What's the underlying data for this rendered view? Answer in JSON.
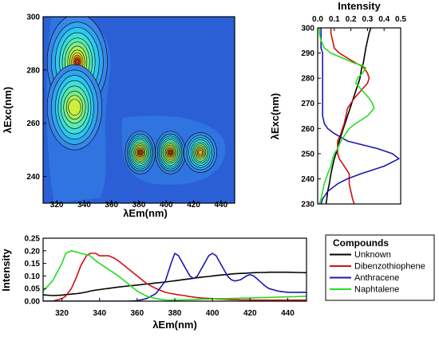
{
  "chart_data": [
    {
      "type": "heatmap",
      "xlabel": "λEm(nm)",
      "ylabel": "λExc(nm)",
      "xlim": [
        310,
        450
      ],
      "ylim": [
        230,
        300
      ],
      "xticks": [
        "320",
        "340",
        "360",
        "380",
        "400",
        "420",
        "440"
      ],
      "yticks": [
        "240",
        "260",
        "280",
        "300"
      ],
      "peaks": [
        {
          "em": 335,
          "exc": 283,
          "level": 1.0
        },
        {
          "em": 332,
          "exc": 265,
          "level": 0.7
        },
        {
          "em": 381,
          "exc": 249,
          "level": 1.0
        },
        {
          "em": 403,
          "exc": 249,
          "level": 1.0
        },
        {
          "em": 425,
          "exc": 249,
          "level": 0.8
        }
      ]
    },
    {
      "type": "line",
      "title": "Intensity",
      "ylabel": "λExc(nm)",
      "xlim": [
        0,
        0.5
      ],
      "ylim": [
        230,
        300
      ],
      "xticks": [
        "0.0",
        "0.1",
        "0.2",
        "0.3",
        "0.4",
        "0.5"
      ],
      "yticks": [
        "230",
        "240",
        "250",
        "260",
        "270",
        "280",
        "290",
        "300"
      ],
      "y": [
        230,
        232,
        235,
        238,
        240,
        242,
        245,
        248,
        250,
        252,
        255,
        258,
        260,
        262,
        265,
        268,
        270,
        272,
        275,
        278,
        280,
        282,
        284,
        285,
        286,
        288,
        290,
        292,
        295,
        298,
        300
      ],
      "series": [
        {
          "name": "Unknown",
          "values": [
            0.05,
            0.055,
            0.06,
            0.07,
            0.075,
            0.08,
            0.09,
            0.1,
            0.11,
            0.12,
            0.13,
            0.145,
            0.155,
            0.165,
            0.18,
            0.195,
            0.205,
            0.215,
            0.23,
            0.245,
            0.255,
            0.26,
            0.265,
            0.27,
            0.275,
            0.28,
            0.285,
            0.29,
            0.3,
            0.31,
            0.32
          ]
        },
        {
          "name": "Dibenzothiophene",
          "values": [
            0.22,
            0.21,
            0.2,
            0.19,
            0.19,
            0.19,
            0.16,
            0.13,
            0.12,
            0.12,
            0.12,
            0.14,
            0.15,
            0.16,
            0.17,
            0.18,
            0.2,
            0.22,
            0.26,
            0.3,
            0.31,
            0.3,
            0.28,
            0.26,
            0.23,
            0.18,
            0.13,
            0.1,
            0.09,
            0.08,
            0.08
          ]
        },
        {
          "name": "Anthracene",
          "values": [
            0.02,
            0.03,
            0.06,
            0.12,
            0.18,
            0.26,
            0.4,
            0.49,
            0.45,
            0.36,
            0.18,
            0.1,
            0.06,
            0.04,
            0.03,
            0.03,
            0.03,
            0.03,
            0.03,
            0.03,
            0.03,
            0.03,
            0.03,
            0.03,
            0.03,
            0.03,
            0.03,
            0.02,
            0.02,
            0.02,
            0.02
          ]
        },
        {
          "name": "Naphtalene",
          "values": [
            0.01,
            0.02,
            0.03,
            0.04,
            0.05,
            0.06,
            0.08,
            0.09,
            0.1,
            0.12,
            0.14,
            0.17,
            0.19,
            0.23,
            0.3,
            0.34,
            0.33,
            0.31,
            0.27,
            0.23,
            0.24,
            0.27,
            0.29,
            0.27,
            0.22,
            0.15,
            0.08,
            0.04,
            0.02,
            0.01,
            0.01
          ]
        }
      ]
    },
    {
      "type": "line",
      "xlabel": "λEm(nm)",
      "ylabel": "Intensity",
      "xlim": [
        310,
        450
      ],
      "ylim": [
        0,
        0.25
      ],
      "xticks": [
        "320",
        "340",
        "360",
        "380",
        "400",
        "420",
        "440"
      ],
      "yticks": [
        "0.00",
        "0.05",
        "0.10",
        "0.15",
        "0.20",
        "0.25"
      ],
      "x": [
        310,
        315,
        320,
        322,
        325,
        328,
        330,
        333,
        335,
        338,
        340,
        343,
        345,
        348,
        350,
        355,
        360,
        365,
        370,
        375,
        378,
        380,
        382,
        385,
        388,
        390,
        392,
        395,
        398,
        400,
        402,
        405,
        408,
        410,
        412,
        415,
        418,
        420,
        422,
        425,
        428,
        430,
        435,
        440,
        445,
        450
      ],
      "series": [
        {
          "name": "Unknown",
          "values": [
            0.025,
            0.022,
            0.024,
            0.026,
            0.028,
            0.03,
            0.032,
            0.036,
            0.04,
            0.044,
            0.046,
            0.049,
            0.051,
            0.054,
            0.056,
            0.06,
            0.064,
            0.068,
            0.072,
            0.076,
            0.079,
            0.081,
            0.083,
            0.086,
            0.089,
            0.091,
            0.093,
            0.096,
            0.098,
            0.1,
            0.102,
            0.104,
            0.106,
            0.108,
            0.109,
            0.11,
            0.111,
            0.112,
            0.113,
            0.114,
            0.114,
            0.115,
            0.115,
            0.115,
            0.114,
            0.113
          ]
        },
        {
          "name": "Dibenzothiophene",
          "values": [
            0.0,
            0.0,
            0.01,
            0.02,
            0.05,
            0.1,
            0.14,
            0.18,
            0.19,
            0.19,
            0.18,
            0.18,
            0.18,
            0.17,
            0.16,
            0.13,
            0.1,
            0.07,
            0.05,
            0.035,
            0.03,
            0.028,
            0.025,
            0.022,
            0.018,
            0.016,
            0.014,
            0.012,
            0.011,
            0.01,
            0.009,
            0.008,
            0.007,
            0.006,
            0.006,
            0.005,
            0.005,
            0.005,
            0.004,
            0.004,
            0.004,
            0.004,
            0.004,
            0.004,
            0.004,
            0.004
          ]
        },
        {
          "name": "Anthracene",
          "values": [
            0.0,
            0.0,
            0.0,
            0.0,
            0.0,
            0.0,
            0.0,
            0.0,
            0.0,
            0.0,
            0.0,
            0.0,
            0.0,
            0.0,
            0.0,
            0.0,
            0.002,
            0.01,
            0.03,
            0.08,
            0.15,
            0.19,
            0.18,
            0.14,
            0.1,
            0.09,
            0.1,
            0.14,
            0.18,
            0.19,
            0.18,
            0.14,
            0.1,
            0.085,
            0.08,
            0.085,
            0.1,
            0.105,
            0.1,
            0.08,
            0.06,
            0.05,
            0.04,
            0.035,
            0.035,
            0.035
          ]
        },
        {
          "name": "Naphtalene",
          "values": [
            0.04,
            0.08,
            0.15,
            0.19,
            0.2,
            0.195,
            0.19,
            0.185,
            0.18,
            0.16,
            0.15,
            0.135,
            0.125,
            0.11,
            0.1,
            0.07,
            0.04,
            0.02,
            0.01,
            0.005,
            0.004,
            0.004,
            0.004,
            0.005,
            0.006,
            0.006,
            0.007,
            0.008,
            0.008,
            0.009,
            0.01,
            0.01,
            0.01,
            0.011,
            0.011,
            0.012,
            0.012,
            0.013,
            0.013,
            0.014,
            0.014,
            0.015,
            0.016,
            0.017,
            0.018,
            0.02
          ]
        }
      ],
      "legend": {
        "title": "Compounds",
        "items": [
          {
            "label": "Unknown",
            "color": "#000000"
          },
          {
            "label": "Dibenzothiophene",
            "color": "#d01010"
          },
          {
            "label": "Anthracene",
            "color": "#1a1aaa"
          },
          {
            "label": "Naphtalene",
            "color": "#22dd22"
          }
        ]
      }
    }
  ],
  "colors": {
    "Unknown": "#000000",
    "Dibenzothiophene": "#d01010",
    "Anthracene": "#1a1aaa",
    "Naphtalene": "#22dd22"
  }
}
